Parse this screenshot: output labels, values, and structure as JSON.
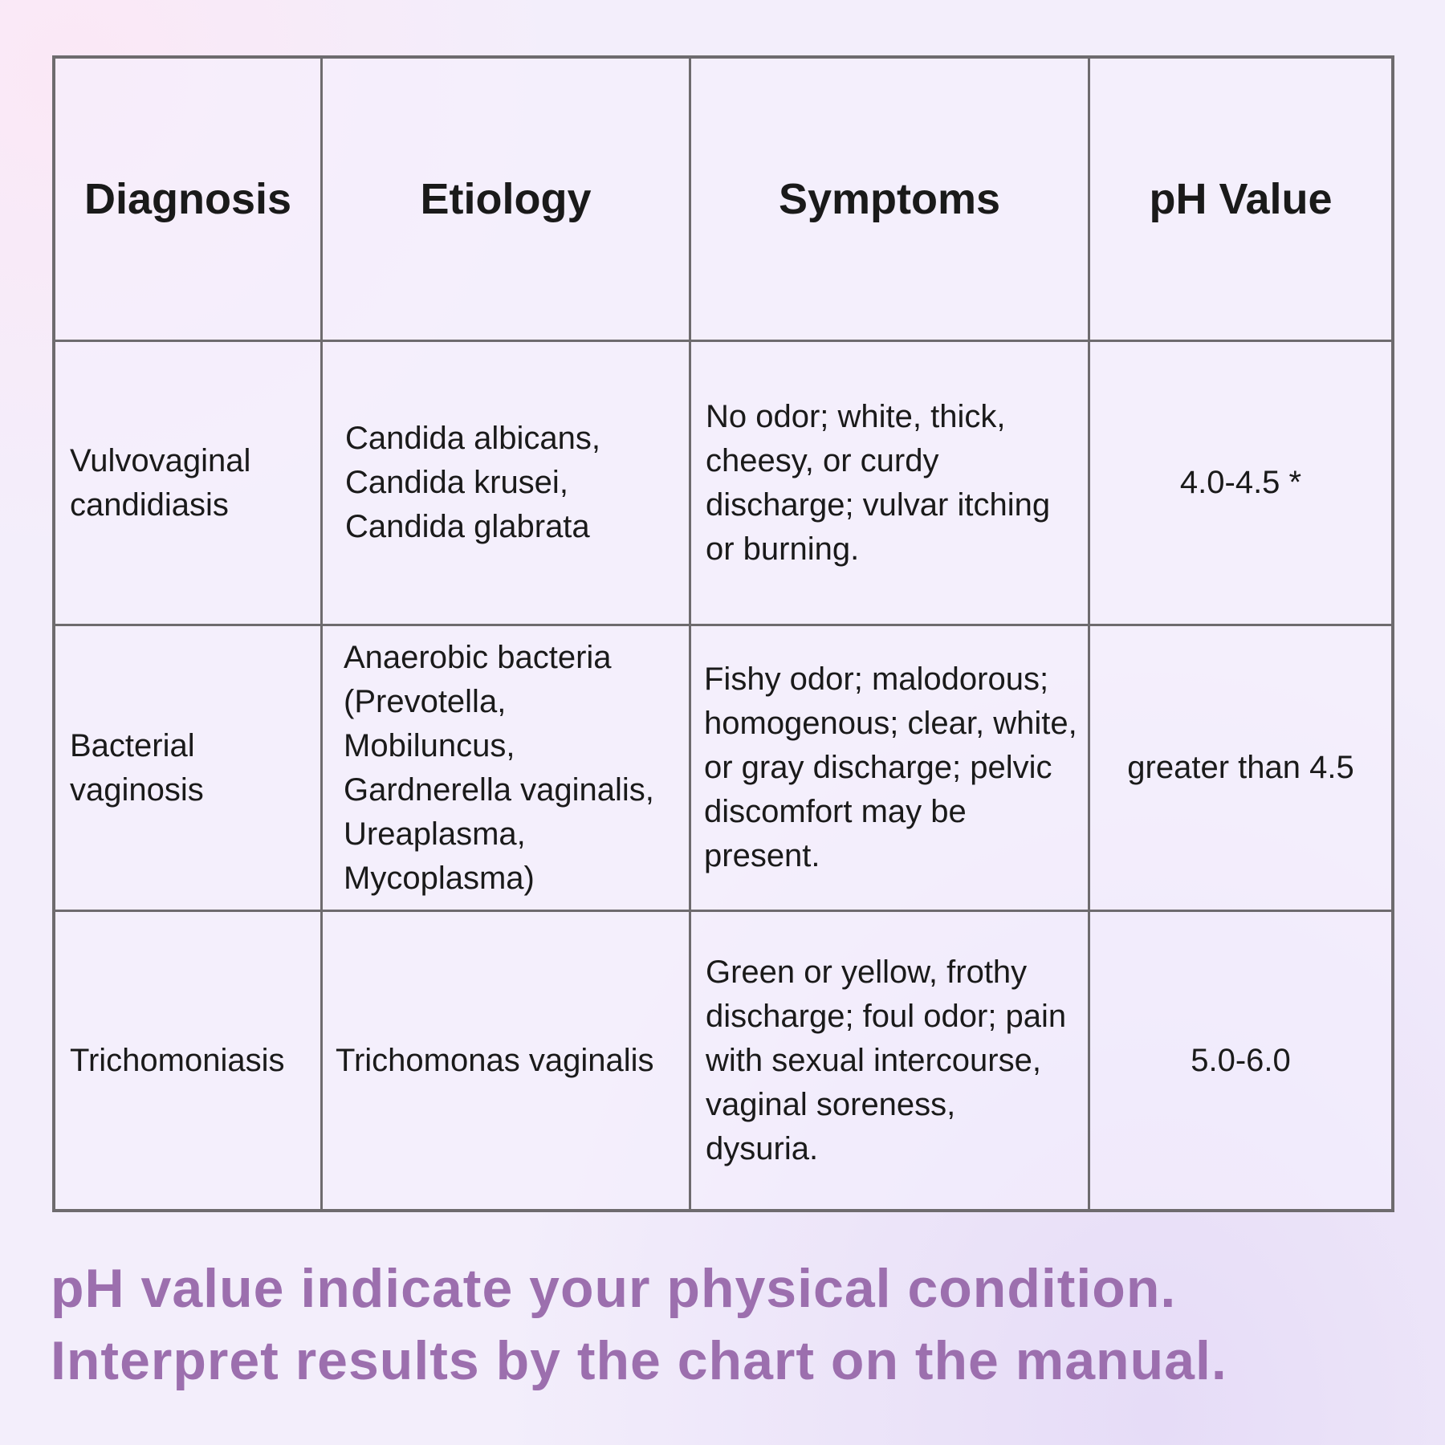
{
  "table": {
    "headers": [
      "Diagnosis",
      "Etiology",
      "Symptoms",
      "pH Value"
    ],
    "rows": [
      {
        "diagnosis": "Vulvovaginal candidiasis",
        "etiology": "Candida albicans, Candida krusei, Candida glabrata",
        "symptoms": "No odor; white, thick, cheesy, or curdy discharge; vulvar itching or burning.",
        "ph": "4.0-4.5 *"
      },
      {
        "diagnosis": "Bacterial vaginosis",
        "etiology": "Anaerobic bacteria (Prevotella, Mobiluncus, Gardnerella vaginalis, Ureaplasma, Mycoplasma)",
        "symptoms": "Fishy odor; malodorous; homogenous; clear, white, or gray discharge; pelvic discomfort may be present.",
        "ph": "greater than 4.5"
      },
      {
        "diagnosis": "Trichomoniasis",
        "etiology": "Trichomonas vaginalis",
        "symptoms": "Green or yellow, frothy discharge; foul odor; pain with sexual intercourse, vaginal soreness, dysuria.",
        "ph": "5.0-6.0"
      }
    ]
  },
  "footer": {
    "line1": "pH value indicate your physical condition.",
    "line2": "Interpret results by the chart on the manual.",
    "color": "#9c6fae"
  }
}
